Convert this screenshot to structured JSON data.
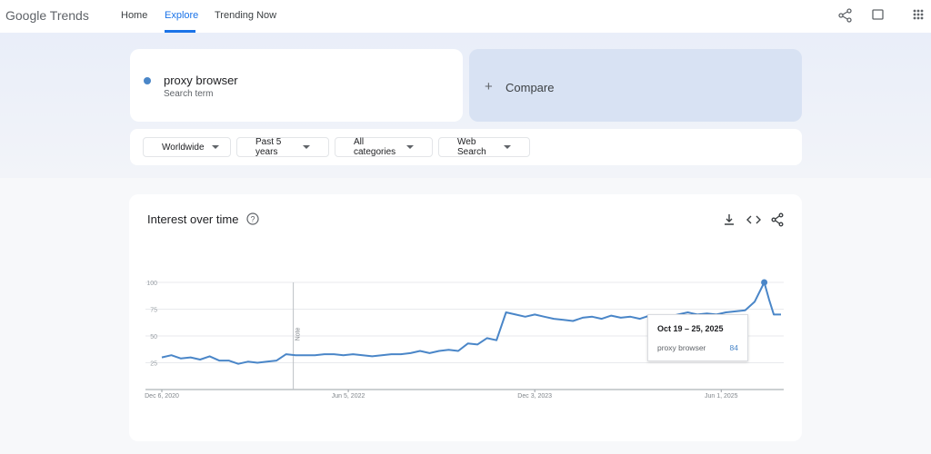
{
  "header": {
    "logo": "Google Trends",
    "nav": [
      "Home",
      "Explore",
      "Trending Now"
    ]
  },
  "search": {
    "term": "proxy browser",
    "subtitle": "Search term",
    "compare": "Compare"
  },
  "filters": [
    "Worldwide",
    "Past 5 years",
    "All categories",
    "Web Search"
  ],
  "panel": {
    "title": "Interest over time"
  },
  "chart_data": {
    "type": "line",
    "x": [
      "2020-12-06",
      "2021-01-03",
      "2021-01-31",
      "2021-02-28",
      "2021-03-28",
      "2021-04-25",
      "2021-05-23",
      "2021-06-20",
      "2021-07-18",
      "2021-08-15",
      "2021-09-12",
      "2021-10-10",
      "2021-11-07",
      "2021-12-05",
      "2022-01-02",
      "2022-01-30",
      "2022-02-27",
      "2022-03-27",
      "2022-04-24",
      "2022-05-22",
      "2022-06-19",
      "2022-07-17",
      "2022-08-14",
      "2022-09-11",
      "2022-10-09",
      "2022-11-06",
      "2022-12-04",
      "2023-01-01",
      "2023-01-29",
      "2023-02-26",
      "2023-03-26",
      "2023-04-23",
      "2023-05-21",
      "2023-06-18",
      "2023-07-16",
      "2023-08-13",
      "2023-09-10",
      "2023-10-08",
      "2023-11-05",
      "2023-12-03",
      "2023-12-31",
      "2024-01-28",
      "2024-02-25",
      "2024-03-24",
      "2024-04-21",
      "2024-05-19",
      "2024-06-16",
      "2024-07-14",
      "2024-08-11",
      "2024-09-08",
      "2024-10-06",
      "2024-11-03",
      "2024-12-01",
      "2024-12-29",
      "2025-01-26",
      "2025-02-23",
      "2025-03-23",
      "2025-04-20",
      "2025-05-18",
      "2025-06-15",
      "2025-07-13",
      "2025-08-10",
      "2025-09-07",
      "2025-10-05",
      "2025-10-19",
      "2025-11-02",
      "2025-11-23"
    ],
    "series": [
      {
        "name": "proxy browser",
        "color": "#4a86c8",
        "values": [
          30,
          32,
          29,
          30,
          28,
          31,
          27,
          27,
          24,
          26,
          25,
          26,
          27,
          33,
          32,
          32,
          32,
          33,
          33,
          32,
          33,
          32,
          31,
          32,
          33,
          33,
          34,
          36,
          34,
          36,
          37,
          36,
          43,
          42,
          48,
          46,
          72,
          70,
          68,
          70,
          68,
          66,
          65,
          64,
          67,
          68,
          66,
          69,
          67,
          68,
          66,
          69,
          67,
          68,
          70,
          72,
          70,
          71,
          70,
          72,
          73,
          74,
          82,
          100,
          84,
          70,
          70
        ]
      }
    ],
    "xlim": [
      "2020-12-06",
      "2025-11-23"
    ],
    "xticks": [
      {
        "value": "2020-12-06",
        "label": "Dec 6, 2020"
      },
      {
        "value": "2022-06-05",
        "label": "Jun 5, 2022"
      },
      {
        "value": "2023-12-03",
        "label": "Dec 3, 2023"
      },
      {
        "value": "2025-06-01",
        "label": "Jun 1, 2025"
      }
    ],
    "ylim": [
      0,
      100
    ],
    "yticks": [
      25,
      50,
      75,
      100
    ],
    "grid": true,
    "annotation": {
      "text": "Note",
      "x": "2021-12-26"
    },
    "tooltip": {
      "date": "Oct 19 – 25, 2025"
    }
  }
}
